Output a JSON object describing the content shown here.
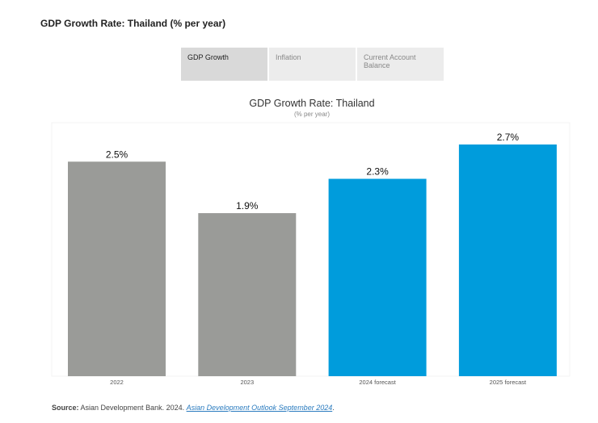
{
  "heading": "GDP Growth Rate: Thailand (% per year)",
  "tabs": [
    {
      "label": "GDP Growth",
      "active": true
    },
    {
      "label": "Inflation",
      "active": false
    },
    {
      "label": "Current Account Balance",
      "active": false
    }
  ],
  "chart_data": {
    "type": "bar",
    "title": "GDP Growth Rate: Thailand",
    "subtitle": "(% per year)",
    "categories": [
      "2022",
      "2023",
      "2024 forecast",
      "2025 forecast"
    ],
    "values": [
      2.5,
      1.9,
      2.3,
      2.7
    ],
    "data_labels": [
      "2.5%",
      "1.9%",
      "2.3%",
      "2.7%"
    ],
    "colors": [
      "#9a9b98",
      "#9a9b98",
      "#009cdc",
      "#009cdc"
    ],
    "ylim": [
      0,
      2.7
    ],
    "grid": false
  },
  "source": {
    "label": "Source:",
    "text": " Asian Development Bank. 2024. ",
    "link": "Asian Development Outlook September 2024",
    "end": "."
  }
}
